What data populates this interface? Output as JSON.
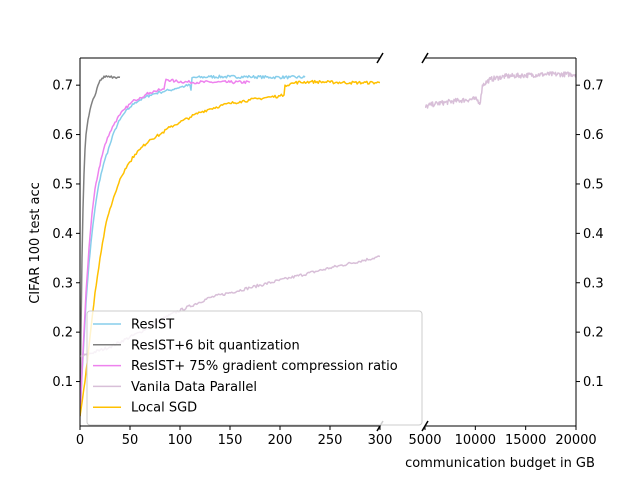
{
  "chart_data": {
    "type": "line",
    "title": "",
    "xlabel": "communication budget in GB",
    "ylabel": "CIFAR 100 test acc",
    "broken_x_axis": true,
    "left_panel": {
      "xlim": [
        0,
        300
      ],
      "xticks": [
        0,
        50,
        100,
        150,
        200,
        250,
        300
      ],
      "xtick_labels": [
        "0",
        "50",
        "100",
        "150",
        "200",
        "250",
        "300"
      ]
    },
    "right_panel": {
      "xlim": [
        5000,
        20000
      ],
      "xticks": [
        5000,
        10000,
        15000,
        20000
      ],
      "xtick_labels": [
        "5000",
        "10000",
        "15000",
        "20000"
      ]
    },
    "ylim": [
      0.01,
      0.755
    ],
    "yticks": [
      0.1,
      0.2,
      0.3,
      0.4,
      0.5,
      0.6,
      0.7
    ],
    "ytick_labels": [
      "0.1",
      "0.2",
      "0.3",
      "0.4",
      "0.5",
      "0.6",
      "0.7"
    ],
    "grid": false,
    "legend_position": "lower-left",
    "series": [
      {
        "name": "ResIST",
        "color": "#87ceeb",
        "points": [
          [
            0,
            0.03
          ],
          [
            3,
            0.15
          ],
          [
            6,
            0.26
          ],
          [
            9,
            0.34
          ],
          [
            12,
            0.4
          ],
          [
            15,
            0.45
          ],
          [
            18,
            0.49
          ],
          [
            21,
            0.52
          ],
          [
            25,
            0.55
          ],
          [
            30,
            0.58
          ],
          [
            35,
            0.61
          ],
          [
            40,
            0.63
          ],
          [
            45,
            0.645
          ],
          [
            50,
            0.655
          ],
          [
            55,
            0.665
          ],
          [
            60,
            0.67
          ],
          [
            65,
            0.675
          ],
          [
            70,
            0.68
          ],
          [
            75,
            0.683
          ],
          [
            80,
            0.686
          ],
          [
            85,
            0.688
          ],
          [
            90,
            0.69
          ],
          [
            95,
            0.693
          ],
          [
            100,
            0.696
          ],
          [
            105,
            0.698
          ],
          [
            110,
            0.7
          ],
          [
            111,
            0.69
          ],
          [
            112,
            0.715
          ],
          [
            130,
            0.717
          ],
          [
            150,
            0.717
          ],
          [
            170,
            0.717
          ],
          [
            190,
            0.716
          ],
          [
            210,
            0.716
          ],
          [
            225,
            0.716
          ]
        ],
        "right_points": []
      },
      {
        "name": "ResIST+6 bit quantization",
        "color": "#808080",
        "points": [
          [
            0,
            0.03
          ],
          [
            1,
            0.2
          ],
          [
            2,
            0.35
          ],
          [
            3,
            0.45
          ],
          [
            4,
            0.52
          ],
          [
            5,
            0.57
          ],
          [
            6,
            0.6
          ],
          [
            8,
            0.63
          ],
          [
            10,
            0.65
          ],
          [
            12,
            0.665
          ],
          [
            14,
            0.675
          ],
          [
            16,
            0.685
          ],
          [
            18,
            0.7
          ],
          [
            20,
            0.71
          ],
          [
            22,
            0.714
          ],
          [
            25,
            0.716
          ],
          [
            30,
            0.716
          ],
          [
            35,
            0.716
          ],
          [
            40,
            0.716
          ]
        ],
        "right_points": []
      },
      {
        "name": "ResIST+ 75% gradient compression ratio",
        "color": "#ee82ee",
        "points": [
          [
            0,
            0.03
          ],
          [
            3,
            0.16
          ],
          [
            6,
            0.28
          ],
          [
            9,
            0.37
          ],
          [
            12,
            0.44
          ],
          [
            15,
            0.49
          ],
          [
            18,
            0.52
          ],
          [
            21,
            0.55
          ],
          [
            25,
            0.58
          ],
          [
            30,
            0.605
          ],
          [
            35,
            0.625
          ],
          [
            40,
            0.64
          ],
          [
            45,
            0.652
          ],
          [
            50,
            0.662
          ],
          [
            55,
            0.67
          ],
          [
            60,
            0.675
          ],
          [
            65,
            0.68
          ],
          [
            70,
            0.685
          ],
          [
            75,
            0.688
          ],
          [
            80,
            0.69
          ],
          [
            84,
            0.692
          ],
          [
            86,
            0.712
          ],
          [
            95,
            0.708
          ],
          [
            110,
            0.706
          ],
          [
            130,
            0.706
          ],
          [
            150,
            0.706
          ],
          [
            170,
            0.706
          ]
        ],
        "right_points": []
      },
      {
        "name": "Vanila Data Parallel",
        "color": "#d8bfd8",
        "points": [
          [
            0,
            0.15
          ],
          [
            30,
            0.17
          ],
          [
            60,
            0.2
          ],
          [
            90,
            0.235
          ],
          [
            130,
            0.27
          ],
          [
            170,
            0.29
          ],
          [
            210,
            0.31
          ],
          [
            250,
            0.33
          ],
          [
            300,
            0.353
          ]
        ],
        "right_points": [
          [
            5000,
            0.655
          ],
          [
            5500,
            0.66
          ],
          [
            6000,
            0.662
          ],
          [
            7000,
            0.665
          ],
          [
            8000,
            0.668
          ],
          [
            9000,
            0.67
          ],
          [
            10000,
            0.672
          ],
          [
            10500,
            0.665
          ],
          [
            10700,
            0.7
          ],
          [
            11500,
            0.712
          ],
          [
            13000,
            0.718
          ],
          [
            15000,
            0.72
          ],
          [
            17000,
            0.722
          ],
          [
            20000,
            0.722
          ]
        ]
      },
      {
        "name": "Local SGD",
        "color": "#ffc000",
        "points": [
          [
            0,
            0.03
          ],
          [
            5,
            0.1
          ],
          [
            10,
            0.19
          ],
          [
            15,
            0.28
          ],
          [
            20,
            0.35
          ],
          [
            25,
            0.41
          ],
          [
            30,
            0.45
          ],
          [
            35,
            0.48
          ],
          [
            40,
            0.51
          ],
          [
            45,
            0.53
          ],
          [
            50,
            0.545
          ],
          [
            55,
            0.56
          ],
          [
            60,
            0.57
          ],
          [
            70,
            0.59
          ],
          [
            80,
            0.6
          ],
          [
            90,
            0.615
          ],
          [
            100,
            0.625
          ],
          [
            110,
            0.635
          ],
          [
            120,
            0.645
          ],
          [
            130,
            0.652
          ],
          [
            140,
            0.658
          ],
          [
            150,
            0.663
          ],
          [
            160,
            0.667
          ],
          [
            170,
            0.67
          ],
          [
            180,
            0.673
          ],
          [
            190,
            0.676
          ],
          [
            200,
            0.678
          ],
          [
            204,
            0.68
          ],
          [
            205,
            0.7
          ],
          [
            215,
            0.705
          ],
          [
            230,
            0.707
          ],
          [
            250,
            0.706
          ],
          [
            270,
            0.705
          ],
          [
            300,
            0.705
          ]
        ],
        "right_points": []
      }
    ]
  }
}
